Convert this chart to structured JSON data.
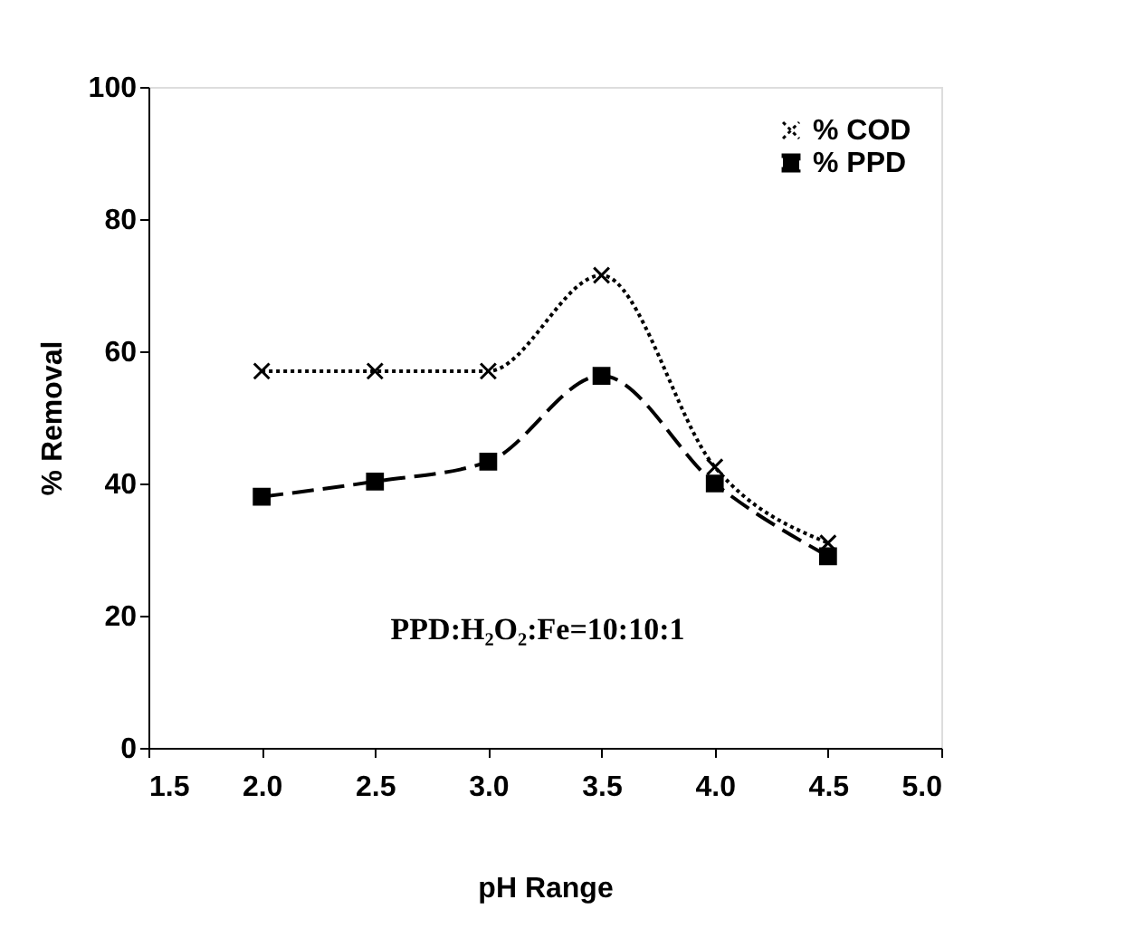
{
  "chart_data": {
    "type": "line",
    "xlabel": "pH Range",
    "ylabel": "% Removal",
    "x": [
      2.0,
      2.5,
      3.0,
      3.5,
      4.0,
      4.5
    ],
    "series": [
      {
        "name": "% COD",
        "color": "#000000",
        "values": [
          57,
          57,
          57,
          71.5,
          42.5,
          31
        ],
        "marker": "cross",
        "line_style": "dotted"
      },
      {
        "name": "% PPD",
        "color": "#000000",
        "values": [
          38,
          40.3,
          43.3,
          56.3,
          40,
          29
        ],
        "marker": "square",
        "line_style": "dashed"
      }
    ],
    "xlim": [
      1.5,
      5.0
    ],
    "xticks": [
      {
        "value": 1.5,
        "label": "1.5"
      },
      {
        "value": 2,
        "label": "2.0"
      },
      {
        "value": 2.5,
        "label": "2.5"
      },
      {
        "value": 3,
        "label": "3.0"
      },
      {
        "value": 3.5,
        "label": "3.5"
      },
      {
        "value": 4,
        "label": "4.0"
      },
      {
        "value": 4.5,
        "label": "4.5"
      },
      {
        "value": 5,
        "label": "5.0"
      }
    ],
    "ylim": [
      0,
      100
    ],
    "yticks": [
      0,
      20,
      40,
      60,
      80,
      100
    ],
    "grid": false,
    "legend": "top right",
    "annotations": [
      "PPD:H₂O₂:Fe=10:10:1"
    ]
  }
}
